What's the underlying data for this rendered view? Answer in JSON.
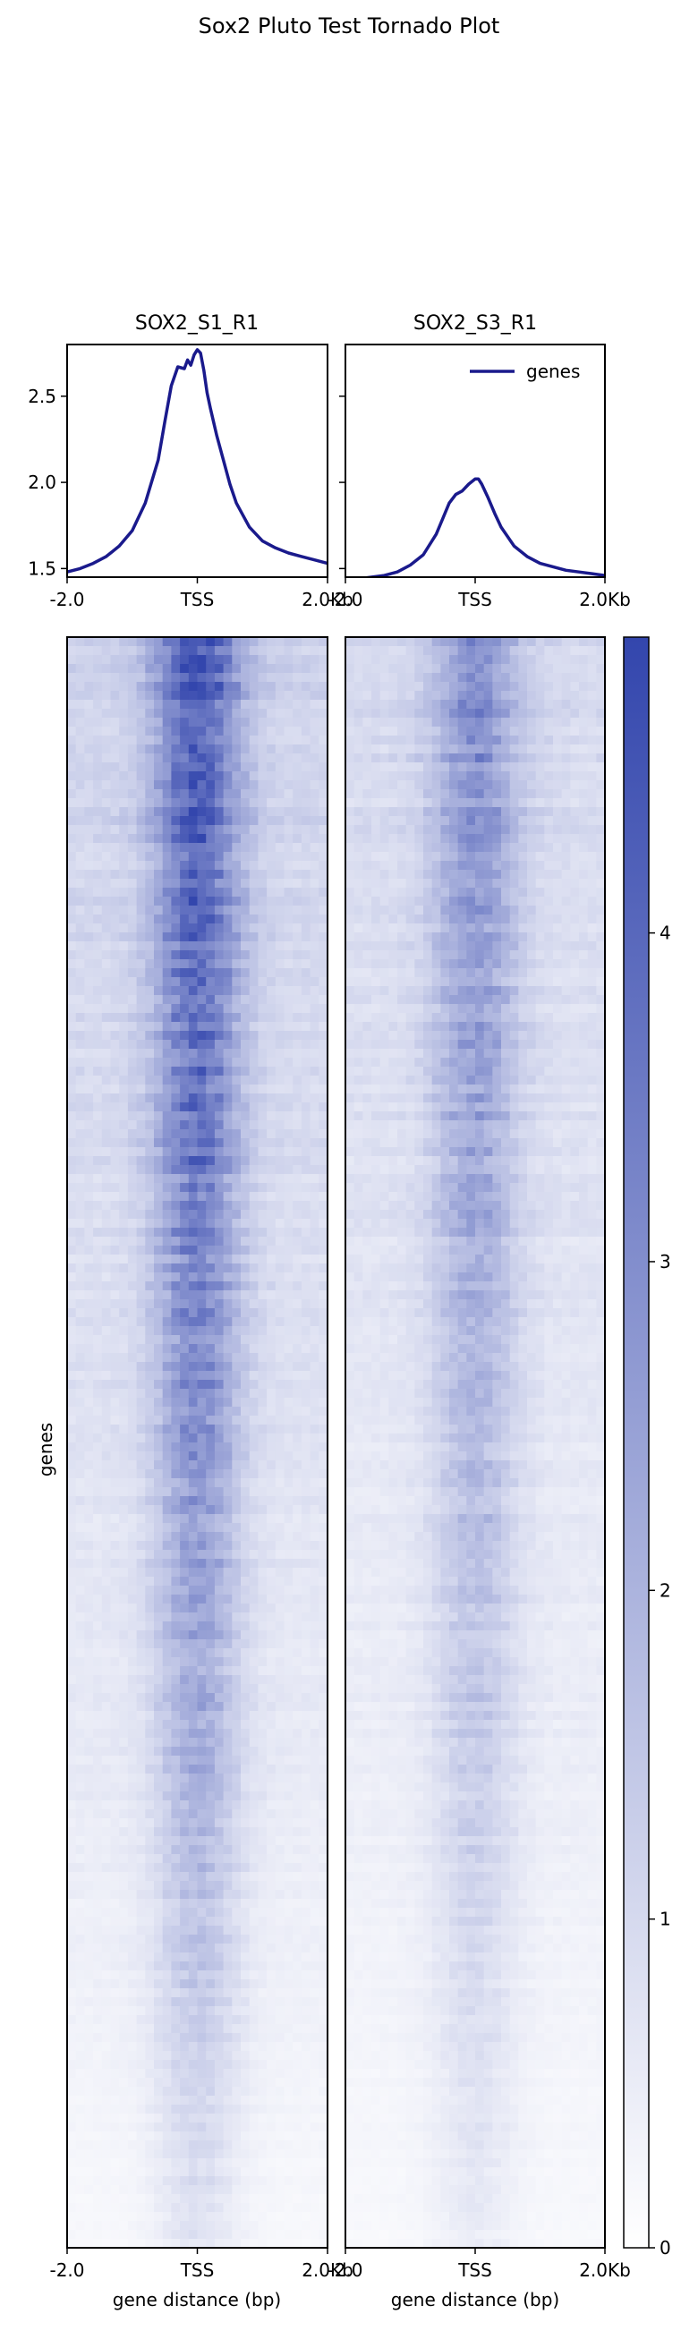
{
  "chart_data": {
    "type": "heatmap",
    "title": "Sox2 Pluto Test Tornado Plot",
    "profile_ylim": [
      1.45,
      2.8
    ],
    "profile_yticks": [
      1.5,
      2.0,
      2.5
    ],
    "profile_ytick_labels": [
      "1.5",
      "2.0",
      "2.5"
    ],
    "xticks": [
      "-2.0",
      "TSS",
      "2.0Kb"
    ],
    "x_range_kb": [
      -2.0,
      2.0
    ],
    "legend": {
      "label": "genes",
      "placement": "top-right",
      "color": "#1a1a8c"
    },
    "ylabel": "genes",
    "xlabel": "gene distance (bp)",
    "colorbar": {
      "min": 0,
      "max": 4.9,
      "ticks": [
        0,
        1,
        2,
        3,
        4
      ],
      "tick_labels": [
        "0",
        "1",
        "2",
        "3",
        "4"
      ],
      "color_low": "#ffffff",
      "color_high": "#3346ad"
    },
    "samples": [
      {
        "name": "SOX2_S1_R1",
        "profile": {
          "x": [
            -2.0,
            -1.8,
            -1.6,
            -1.4,
            -1.2,
            -1.0,
            -0.8,
            -0.6,
            -0.5,
            -0.4,
            -0.3,
            -0.2,
            -0.15,
            -0.1,
            -0.05,
            0.0,
            0.05,
            0.1,
            0.15,
            0.2,
            0.3,
            0.4,
            0.5,
            0.6,
            0.8,
            1.0,
            1.2,
            1.4,
            1.6,
            1.8,
            2.0
          ],
          "y": [
            1.48,
            1.5,
            1.53,
            1.57,
            1.63,
            1.72,
            1.88,
            2.13,
            2.35,
            2.56,
            2.67,
            2.66,
            2.71,
            2.68,
            2.74,
            2.77,
            2.75,
            2.65,
            2.52,
            2.43,
            2.27,
            2.13,
            1.99,
            1.88,
            1.74,
            1.66,
            1.62,
            1.59,
            1.57,
            1.55,
            1.53
          ]
        },
        "intensity": {
          "peak": 4.6,
          "base": 1.2,
          "peak_width_kb": 0.45
        }
      },
      {
        "name": "SOX2_S3_R1",
        "profile": {
          "x": [
            -2.0,
            -1.8,
            -1.6,
            -1.4,
            -1.2,
            -1.0,
            -0.8,
            -0.6,
            -0.5,
            -0.4,
            -0.3,
            -0.2,
            -0.1,
            0.0,
            0.05,
            0.1,
            0.2,
            0.3,
            0.4,
            0.6,
            0.8,
            1.0,
            1.2,
            1.4,
            1.6,
            1.8,
            2.0
          ],
          "y": [
            1.43,
            1.44,
            1.45,
            1.46,
            1.48,
            1.52,
            1.58,
            1.7,
            1.79,
            1.88,
            1.93,
            1.95,
            1.99,
            2.02,
            2.02,
            1.99,
            1.91,
            1.82,
            1.74,
            1.63,
            1.57,
            1.53,
            1.51,
            1.49,
            1.48,
            1.47,
            1.46
          ]
        },
        "intensity": {
          "peak": 3.0,
          "base": 1.0,
          "peak_width_kb": 0.45
        }
      }
    ]
  }
}
